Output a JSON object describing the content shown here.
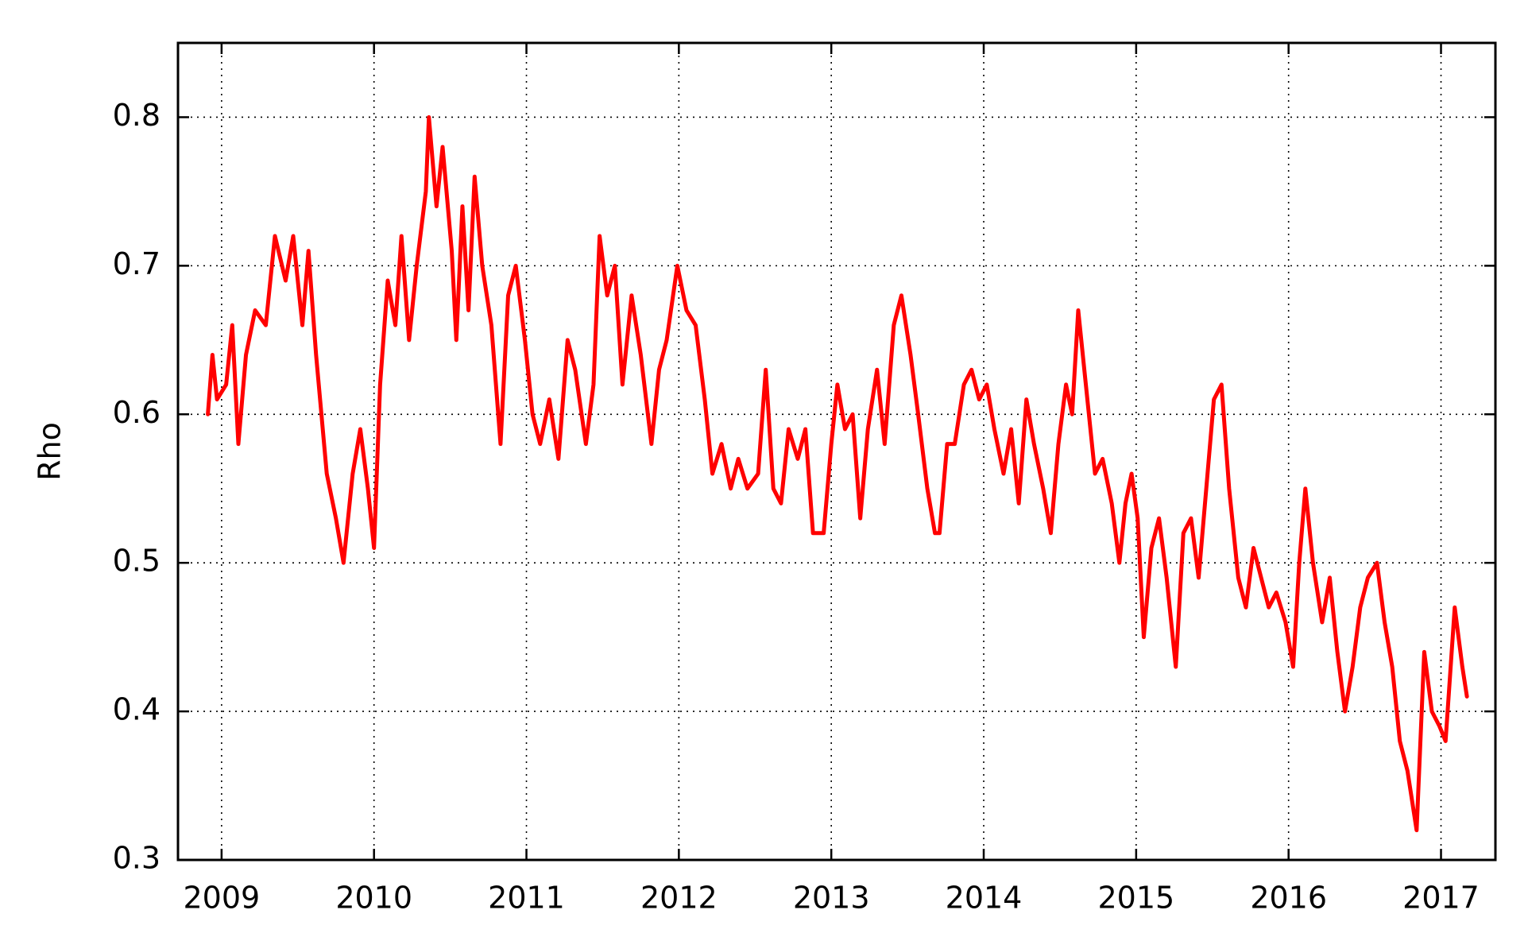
{
  "chart_data": {
    "type": "line",
    "y_label": "Rho",
    "color": "#ff0000",
    "grid": true,
    "xlim": [
      2008.714,
      2017.357
    ],
    "xticks": [
      2009,
      2010,
      2011,
      2012,
      2013,
      2014,
      2015,
      2016,
      2017
    ],
    "ylim": [
      0.3,
      0.85
    ],
    "yticks": [
      0.3,
      0.4,
      0.5,
      0.6,
      0.7,
      0.8
    ],
    "x": [
      2008.91,
      2008.94,
      2008.97,
      2009.03,
      2009.07,
      2009.11,
      2009.16,
      2009.22,
      2009.29,
      2009.35,
      2009.42,
      2009.47,
      2009.53,
      2009.57,
      2009.62,
      2009.69,
      2009.75,
      2009.8,
      2009.86,
      2009.91,
      2009.96,
      2010.0,
      2010.04,
      2010.09,
      2010.14,
      2010.18,
      2010.23,
      2010.28,
      2010.34,
      2010.36,
      2010.41,
      2010.45,
      2010.51,
      2010.54,
      2010.58,
      2010.62,
      2010.66,
      2010.71,
      2010.77,
      2010.83,
      2010.88,
      2010.93,
      2010.99,
      2011.04,
      2011.09,
      2011.15,
      2011.21,
      2011.27,
      2011.32,
      2011.39,
      2011.44,
      2011.48,
      2011.53,
      2011.58,
      2011.63,
      2011.69,
      2011.75,
      2011.82,
      2011.87,
      2011.92,
      2011.99,
      2012.05,
      2012.11,
      2012.17,
      2012.22,
      2012.28,
      2012.34,
      2012.39,
      2012.45,
      2012.52,
      2012.57,
      2012.62,
      2012.67,
      2012.72,
      2012.78,
      2012.83,
      2012.88,
      2012.95,
      2013.0,
      2013.04,
      2013.09,
      2013.14,
      2013.19,
      2013.24,
      2013.3,
      2013.35,
      2013.41,
      2013.46,
      2013.52,
      2013.57,
      2013.63,
      2013.68,
      2013.71,
      2013.76,
      2013.81,
      2013.87,
      2013.92,
      2013.97,
      2014.02,
      2014.07,
      2014.13,
      2014.18,
      2014.23,
      2014.28,
      2014.33,
      2014.39,
      2014.44,
      2014.49,
      2014.54,
      2014.58,
      2014.62,
      2014.67,
      2014.73,
      2014.78,
      2014.84,
      2014.89,
      2014.93,
      2014.97,
      2015.01,
      2015.05,
      2015.1,
      2015.15,
      2015.2,
      2015.26,
      2015.31,
      2015.36,
      2015.41,
      2015.46,
      2015.51,
      2015.56,
      2015.61,
      2015.67,
      2015.72,
      2015.77,
      2015.82,
      2015.87,
      2015.92,
      2015.98,
      2016.03,
      2016.07,
      2016.11,
      2016.16,
      2016.22,
      2016.27,
      2016.32,
      2016.37,
      2016.42,
      2016.47,
      2016.52,
      2016.58,
      2016.63,
      2016.68,
      2016.73,
      2016.78,
      2016.84,
      2016.89,
      2016.94,
      2016.99,
      2017.03,
      2017.09,
      2017.14,
      2017.17
    ],
    "values": [
      0.6,
      0.64,
      0.61,
      0.62,
      0.66,
      0.58,
      0.64,
      0.67,
      0.66,
      0.72,
      0.69,
      0.72,
      0.66,
      0.71,
      0.64,
      0.56,
      0.53,
      0.5,
      0.56,
      0.59,
      0.55,
      0.51,
      0.62,
      0.69,
      0.66,
      0.72,
      0.65,
      0.7,
      0.75,
      0.8,
      0.74,
      0.78,
      0.71,
      0.65,
      0.74,
      0.67,
      0.76,
      0.7,
      0.66,
      0.58,
      0.68,
      0.7,
      0.65,
      0.6,
      0.58,
      0.61,
      0.57,
      0.65,
      0.63,
      0.58,
      0.62,
      0.72,
      0.68,
      0.7,
      0.62,
      0.68,
      0.64,
      0.58,
      0.63,
      0.65,
      0.7,
      0.67,
      0.66,
      0.61,
      0.56,
      0.58,
      0.55,
      0.57,
      0.55,
      0.56,
      0.63,
      0.55,
      0.54,
      0.59,
      0.57,
      0.59,
      0.52,
      0.52,
      0.58,
      0.62,
      0.59,
      0.6,
      0.53,
      0.59,
      0.63,
      0.58,
      0.66,
      0.68,
      0.64,
      0.6,
      0.55,
      0.52,
      0.52,
      0.58,
      0.58,
      0.62,
      0.63,
      0.61,
      0.62,
      0.59,
      0.56,
      0.59,
      0.54,
      0.61,
      0.58,
      0.55,
      0.52,
      0.58,
      0.62,
      0.6,
      0.67,
      0.62,
      0.56,
      0.57,
      0.54,
      0.5,
      0.54,
      0.56,
      0.53,
      0.45,
      0.51,
      0.53,
      0.49,
      0.43,
      0.52,
      0.53,
      0.49,
      0.55,
      0.61,
      0.62,
      0.55,
      0.49,
      0.47,
      0.51,
      0.49,
      0.47,
      0.48,
      0.46,
      0.43,
      0.5,
      0.55,
      0.5,
      0.46,
      0.49,
      0.44,
      0.4,
      0.43,
      0.47,
      0.49,
      0.5,
      0.46,
      0.43,
      0.38,
      0.36,
      0.32,
      0.44,
      0.4,
      0.39,
      0.38,
      0.47,
      0.43,
      0.41
    ]
  }
}
